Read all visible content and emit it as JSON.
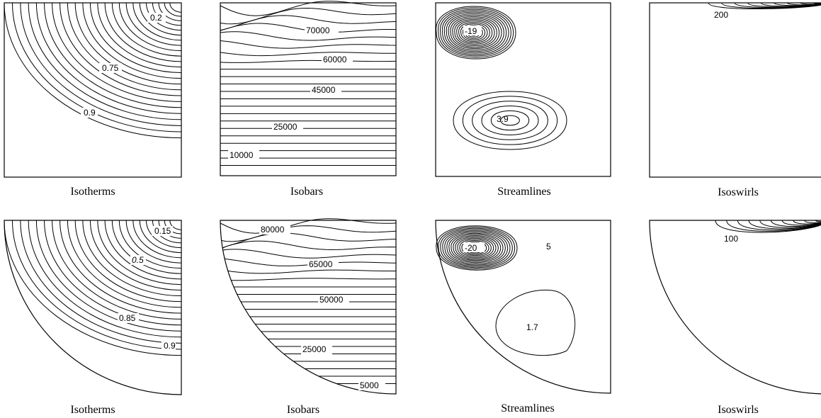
{
  "panels": [
    {
      "id": "sq-isotherms",
      "caption": "Isotherms",
      "labels": [
        "0.2",
        "0.75",
        "0.9"
      ]
    },
    {
      "id": "sq-isobars",
      "caption": "Isobars",
      "labels": [
        "70000",
        "60000",
        "45000",
        "25000",
        "10000"
      ]
    },
    {
      "id": "sq-streamlines",
      "caption": "Streamlines",
      "labels": [
        "-19",
        "3.9"
      ]
    },
    {
      "id": "sq-isoswirls",
      "caption": "Isoswirls",
      "labels": [
        "200"
      ]
    },
    {
      "id": "qc-isotherms",
      "caption": "Isotherms",
      "labels": [
        "0.15",
        "0.5",
        "0.85",
        "0.9"
      ]
    },
    {
      "id": "qc-isobars",
      "caption": "Isobars",
      "labels": [
        "80000",
        "65000",
        "50000",
        "25000",
        "5000"
      ]
    },
    {
      "id": "qc-streamlines",
      "caption": "Streamlines",
      "labels": [
        "-20",
        "5",
        "1.7"
      ]
    },
    {
      "id": "qc-isoswirls",
      "caption": "Isoswirls",
      "labels": [
        "100"
      ]
    }
  ]
}
